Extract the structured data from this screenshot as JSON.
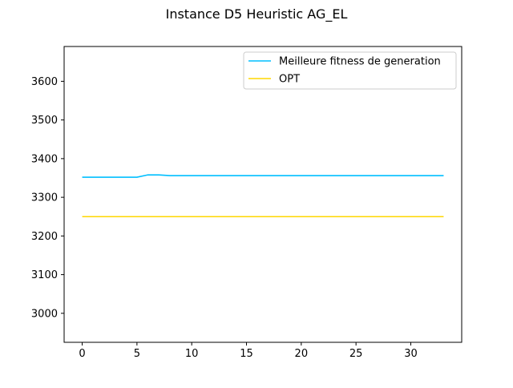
{
  "chart_data": {
    "type": "line",
    "title": "Instance D5 Heuristic AG_EL",
    "xlabel": "",
    "ylabel": "",
    "xlim": [
      -1.65,
      34.65
    ],
    "ylim": [
      2925,
      3690
    ],
    "xticks": [
      0,
      5,
      10,
      15,
      20,
      25,
      30
    ],
    "yticks": [
      3000,
      3100,
      3200,
      3300,
      3400,
      3500,
      3600
    ],
    "grid": false,
    "legend_position": "upper right",
    "series": [
      {
        "name": "Meilleure fitness de generation",
        "color": "#00bfff",
        "x": [
          0,
          1,
          2,
          3,
          4,
          5,
          6,
          7,
          8,
          9,
          10,
          11,
          12,
          13,
          14,
          15,
          16,
          17,
          18,
          19,
          20,
          21,
          22,
          23,
          24,
          25,
          26,
          27,
          28,
          29,
          30,
          31,
          32,
          33
        ],
        "y": [
          3352,
          3352,
          3352,
          3352,
          3352,
          3352,
          3358,
          3358,
          3356,
          3356,
          3356,
          3356,
          3356,
          3356,
          3356,
          3356,
          3356,
          3356,
          3356,
          3356,
          3356,
          3356,
          3356,
          3356,
          3356,
          3356,
          3356,
          3356,
          3356,
          3356,
          3356,
          3356,
          3356,
          3356
        ]
      },
      {
        "name": "OPT",
        "color": "#ffd700",
        "x": [
          0,
          33
        ],
        "y": [
          3250,
          3250
        ]
      }
    ]
  }
}
